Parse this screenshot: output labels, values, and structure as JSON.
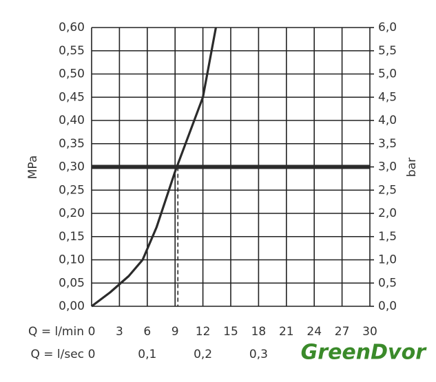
{
  "chart_data": {
    "type": "line",
    "y_label": "MPa",
    "y2_label": "bar",
    "x_label": "Q = l/min",
    "x2_label": "Q = l/sec",
    "x": [
      0,
      2,
      4,
      5.5,
      7,
      9,
      10.5,
      12,
      13.4
    ],
    "series": [
      {
        "color": "#2b2b2b",
        "values": [
          0,
          0.03,
          0.065,
          0.1,
          0.17,
          0.29,
          0.37,
          0.45,
          0.6
        ]
      }
    ],
    "xlim": [
      0,
      30
    ],
    "xticks": [
      0,
      3,
      6,
      9,
      12,
      15,
      18,
      21,
      24,
      27,
      30
    ],
    "x2lim": [
      0,
      0.5
    ],
    "x2ticks": [
      0,
      {
        "value": 0.1,
        "label": "0,1"
      },
      {
        "value": 0.2,
        "label": "0,2"
      },
      {
        "value": 0.3,
        "label": "0,3"
      }
    ],
    "ylim": [
      0,
      0.6
    ],
    "yticks": [
      {
        "value": 0,
        "label": "0,00"
      },
      {
        "value": 0.05,
        "label": "0,05"
      },
      {
        "value": 0.1,
        "label": "0,10"
      },
      {
        "value": 0.15,
        "label": "0,15"
      },
      {
        "value": 0.2,
        "label": "0,20"
      },
      {
        "value": 0.25,
        "label": "0,25"
      },
      {
        "value": 0.3,
        "label": "0,30"
      },
      {
        "value": 0.35,
        "label": "0,35"
      },
      {
        "value": 0.4,
        "label": "0,40"
      },
      {
        "value": 0.45,
        "label": "0,45"
      },
      {
        "value": 0.5,
        "label": "0,50"
      },
      {
        "value": 0.55,
        "label": "0,55"
      },
      {
        "value": 0.6,
        "label": "0,60"
      }
    ],
    "y2lim": [
      0,
      6
    ],
    "y2ticks": [
      {
        "value": 0,
        "label": "0,0"
      },
      {
        "value": 0.5,
        "label": "0,5"
      },
      {
        "value": 1,
        "label": "1,0"
      },
      {
        "value": 1.5,
        "label": "1,5"
      },
      {
        "value": 2,
        "label": "2,0"
      },
      {
        "value": 2.5,
        "label": "2,5"
      },
      {
        "value": 3,
        "label": "3,0"
      },
      {
        "value": 3.5,
        "label": "3,5"
      },
      {
        "value": 4,
        "label": "4,0"
      },
      {
        "value": 4.5,
        "label": "4,5"
      },
      {
        "value": 5,
        "label": "5,0"
      },
      {
        "value": 5.5,
        "label": "5,5"
      },
      {
        "value": 6,
        "label": "6,0"
      }
    ],
    "hline": 0.3,
    "vline": 9.3,
    "grid": true,
    "watermark": "GreenDvor"
  }
}
